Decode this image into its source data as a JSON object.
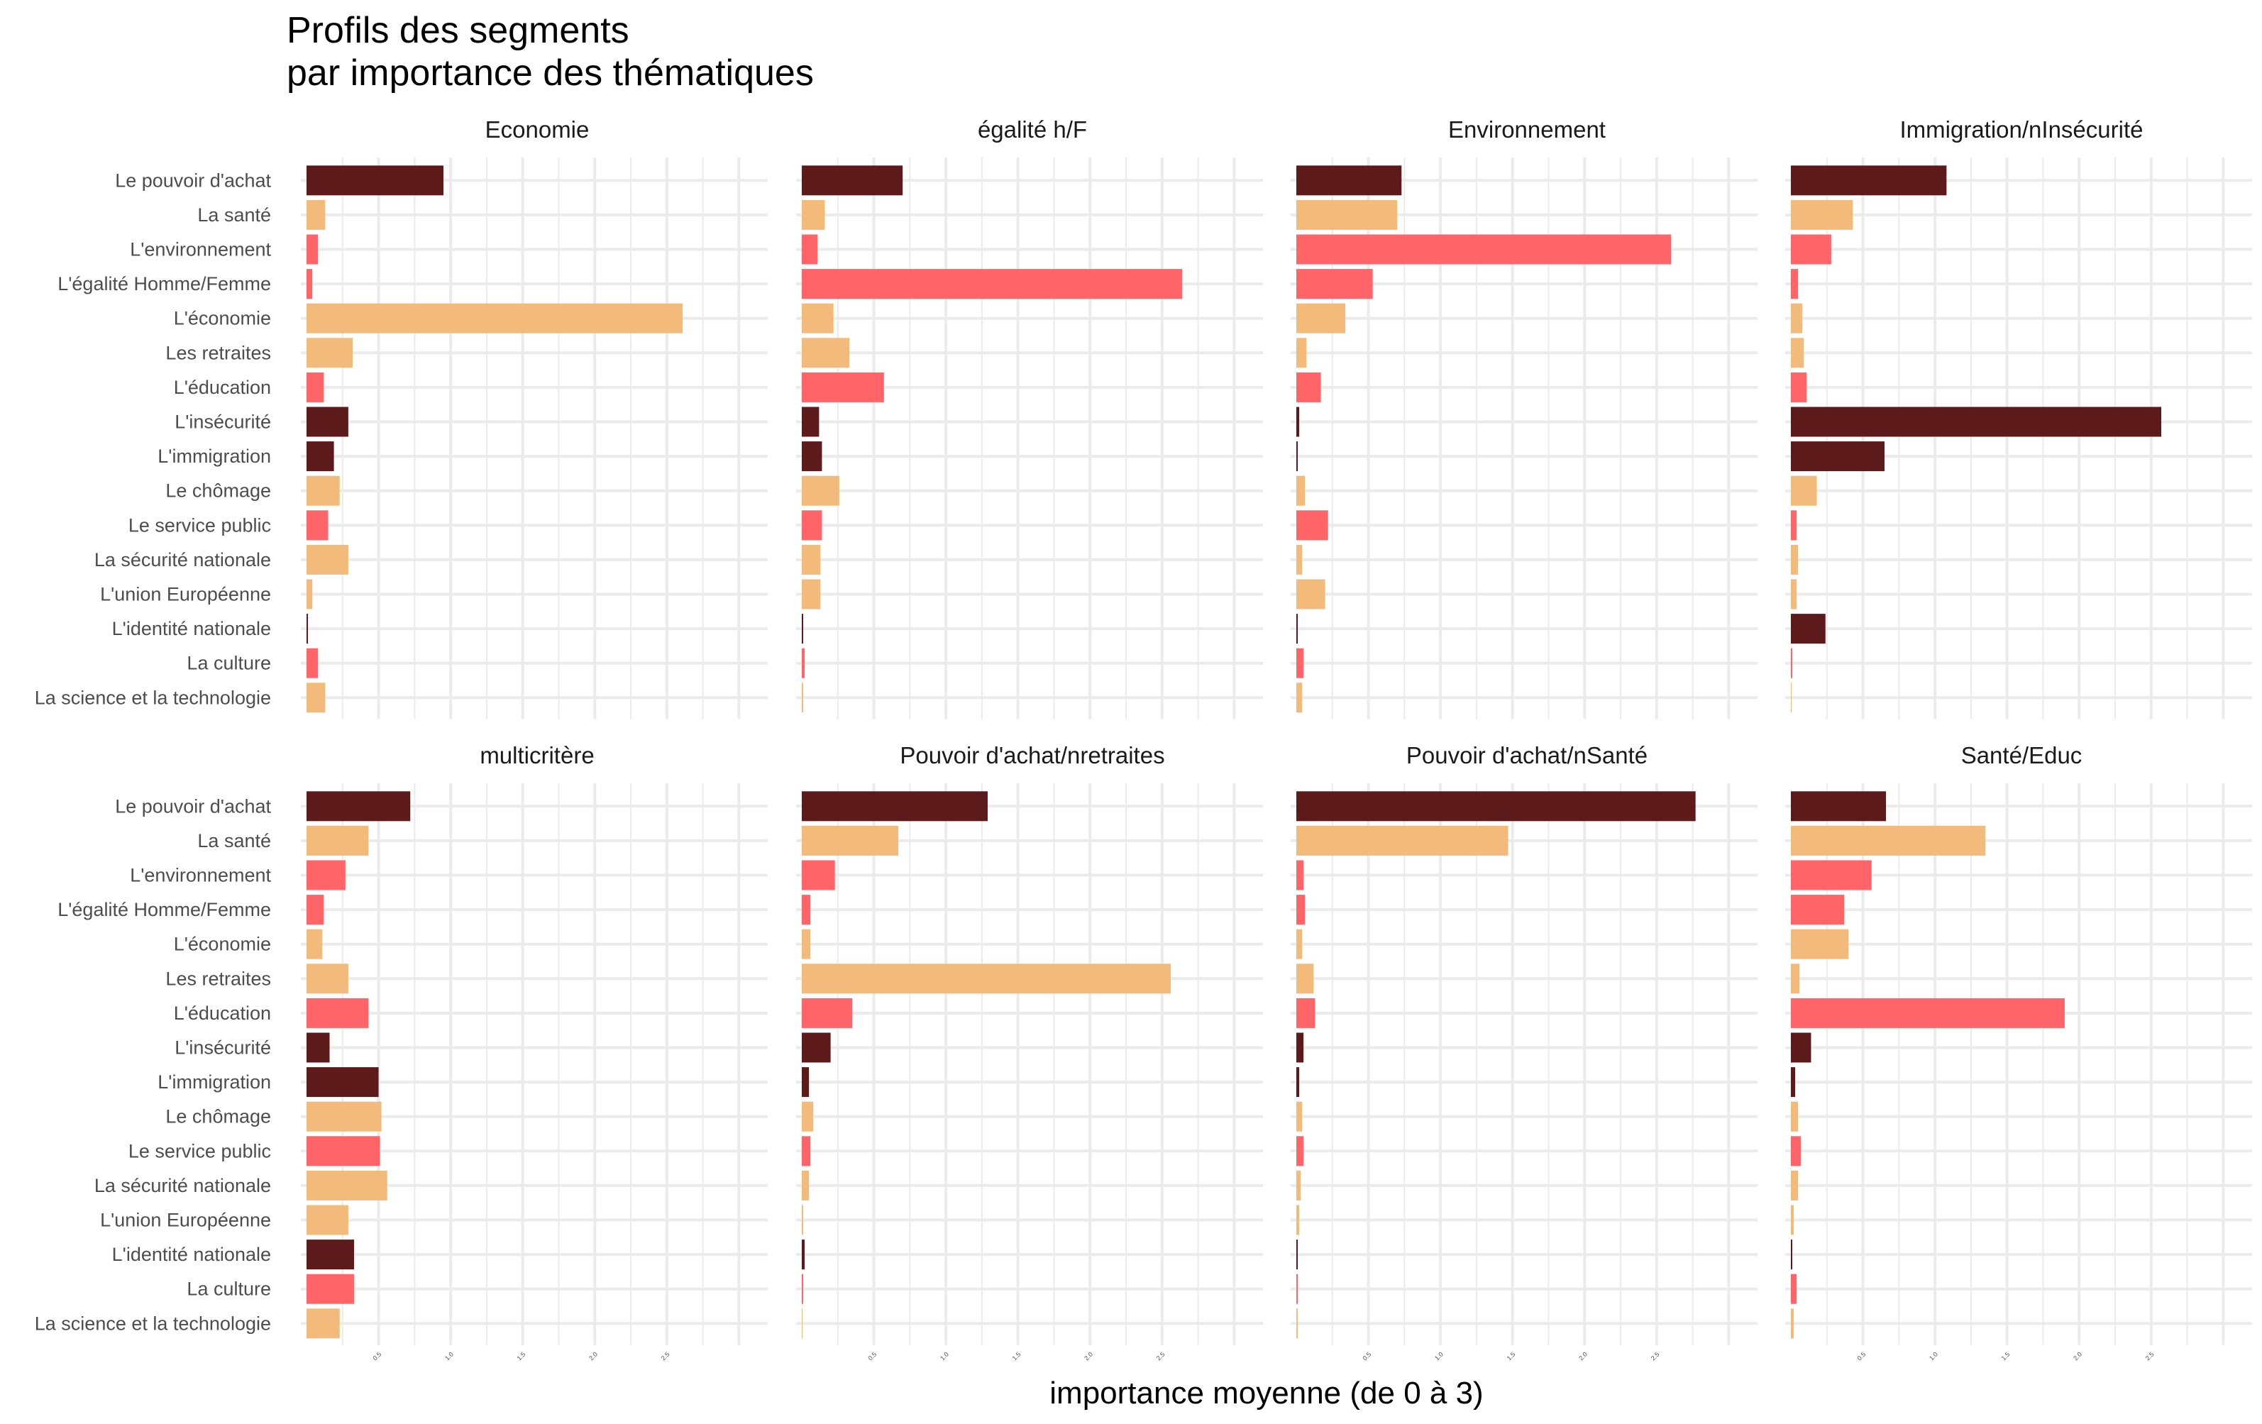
{
  "chart_data": {
    "type": "bar",
    "orientation": "horizontal",
    "title": "Profils des segments\npar importance des thématiques",
    "title_lines": [
      "Profils des segments",
      "par importance des thématiques"
    ],
    "xlabel": "importance moyenne (de 0 à 3)",
    "ylabel": "",
    "xlim": [
      0,
      3.2
    ],
    "x_ticks": [
      0.5,
      1.0,
      1.5,
      2.0,
      2.5
    ],
    "x_tick_labels": [
      "0.5",
      "1.0",
      "1.5",
      "2.0",
      "2.5"
    ],
    "grid": true,
    "legend": "none",
    "layout": {
      "rows": 2,
      "cols": 4
    },
    "colors": {
      "dark": "#5c1a1b",
      "peach": "#f2bb7b",
      "coral": "#ff6468",
      "grid": "#ebebeb"
    },
    "categories": [
      "Le pouvoir d'achat",
      "La santé",
      "L'environnement",
      "L'égalité Homme/Femme",
      "L'économie",
      "Les retraites",
      "L'éducation",
      "L'insécurité",
      "L'immigration",
      "Le chômage",
      "Le service public",
      "La sécurité nationale",
      "L'union Européenne",
      "L'identité nationale",
      "La culture",
      "La science et la technologie"
    ],
    "category_colors": [
      "dark",
      "peach",
      "coral",
      "coral",
      "peach",
      "peach",
      "coral",
      "dark",
      "dark",
      "peach",
      "coral",
      "peach",
      "peach",
      "dark",
      "coral",
      "peach"
    ],
    "series": [
      {
        "name": "Economie",
        "values": [
          0.95,
          0.13,
          0.08,
          0.04,
          2.61,
          0.32,
          0.12,
          0.29,
          0.19,
          0.23,
          0.15,
          0.29,
          0.04,
          0.01,
          0.08,
          0.13
        ]
      },
      {
        "name": "égalité h/F",
        "values": [
          0.7,
          0.16,
          0.11,
          2.64,
          0.22,
          0.33,
          0.57,
          0.12,
          0.14,
          0.26,
          0.14,
          0.13,
          0.13,
          0.01,
          0.02,
          0.01
        ]
      },
      {
        "name": "Environnement",
        "values": [
          0.73,
          0.7,
          2.6,
          0.53,
          0.34,
          0.07,
          0.17,
          0.02,
          0.01,
          0.06,
          0.22,
          0.04,
          0.2,
          0.01,
          0.05,
          0.04
        ]
      },
      {
        "name": "Immigration/nInsécurité",
        "values": [
          1.08,
          0.43,
          0.28,
          0.05,
          0.08,
          0.09,
          0.11,
          2.57,
          0.65,
          0.18,
          0.04,
          0.05,
          0.04,
          0.24,
          0.01,
          0.005
        ]
      },
      {
        "name": "multicritère",
        "values": [
          0.72,
          0.43,
          0.27,
          0.12,
          0.11,
          0.29,
          0.43,
          0.16,
          0.5,
          0.52,
          0.51,
          0.56,
          0.29,
          0.33,
          0.33,
          0.23
        ]
      },
      {
        "name": "Pouvoir d'achat/nretraites",
        "values": [
          1.29,
          0.67,
          0.23,
          0.06,
          0.06,
          2.56,
          0.35,
          0.2,
          0.05,
          0.08,
          0.06,
          0.05,
          0.01,
          0.02,
          0.01,
          0.005
        ]
      },
      {
        "name": "Pouvoir d'achat/nSanté",
        "values": [
          2.77,
          1.47,
          0.05,
          0.06,
          0.04,
          0.12,
          0.13,
          0.05,
          0.02,
          0.04,
          0.05,
          0.03,
          0.02,
          0.01,
          0.01,
          0.01
        ]
      },
      {
        "name": "Santé/Educ",
        "values": [
          0.66,
          1.35,
          0.56,
          0.37,
          0.4,
          0.06,
          1.9,
          0.14,
          0.03,
          0.05,
          0.07,
          0.05,
          0.02,
          0.01,
          0.04,
          0.02
        ]
      }
    ]
  }
}
